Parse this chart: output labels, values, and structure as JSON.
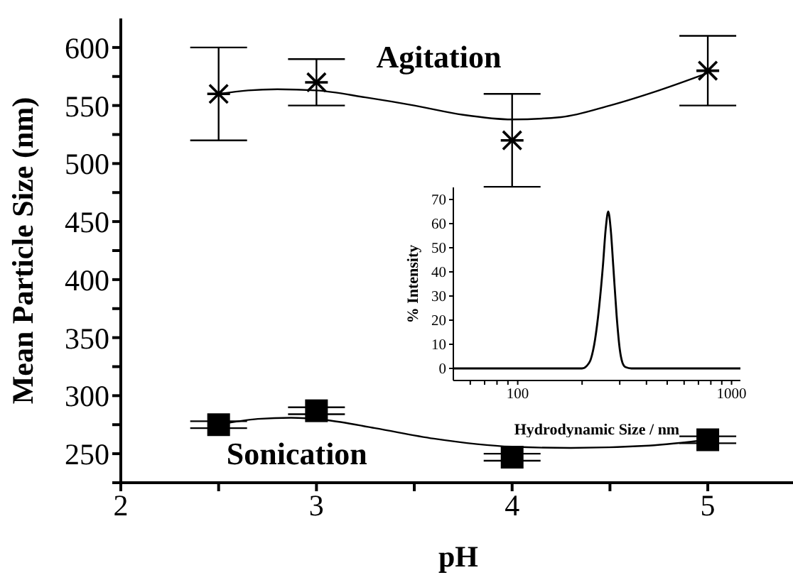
{
  "chart_data": [
    {
      "type": "scatter",
      "xlabel": "pH",
      "ylabel": "Mean Particle Size (nm)",
      "xlim": [
        2,
        5.45
      ],
      "ylim": [
        225,
        625
      ],
      "xticks": [
        2,
        {
          "value": 2.5,
          "label": null
        },
        3,
        {
          "value": 3.5,
          "label": null
        },
        4,
        {
          "value": 4.5,
          "label": null
        },
        5
      ],
      "yticks": [
        {
          "value": 225,
          "label": null
        },
        250,
        {
          "value": 275,
          "label": null
        },
        300,
        {
          "value": 325,
          "label": null
        },
        350,
        {
          "value": 375,
          "label": null
        },
        400,
        {
          "value": 425,
          "label": null
        },
        450,
        {
          "value": 475,
          "label": null
        },
        500,
        {
          "value": 525,
          "label": null
        },
        550,
        {
          "value": 575,
          "label": null
        },
        600
      ],
      "grid": false,
      "legend": false,
      "series": [
        {
          "type": "scatter",
          "name": "Agitation",
          "marker": "cross",
          "color": "#000000",
          "x": [
            2.5,
            3,
            4,
            5
          ],
          "values": [
            560,
            570,
            520,
            580
          ],
          "errors": [
            [
              520,
              600
            ],
            [
              550,
              590
            ],
            [
              480,
              560
            ],
            [
              550,
              610
            ]
          ]
        },
        {
          "type": "scatter",
          "name": "Sonication",
          "marker": "square",
          "color": "#000000",
          "x": [
            2.5,
            3,
            4,
            5
          ],
          "values": [
            275,
            287,
            247,
            262
          ],
          "errors": [
            3,
            3,
            3,
            3
          ]
        },
        {
          "type": "line",
          "marker": "none",
          "color": "#000000",
          "x": [
            2.5,
            2.65,
            2.8,
            3,
            3.25,
            3.5,
            3.75,
            4,
            4.25,
            4.5,
            4.75,
            5
          ],
          "values": [
            560,
            563,
            564,
            563,
            557,
            550,
            542,
            538,
            540,
            550,
            563,
            578
          ]
        },
        {
          "type": "line",
          "marker": "none",
          "color": "#000000",
          "x": [
            2.5,
            2.7,
            2.87,
            3.05,
            3.3,
            3.6,
            4,
            4.3,
            4.7,
            5
          ],
          "values": [
            275,
            280,
            281,
            279,
            272,
            263,
            256,
            255,
            257,
            262
          ]
        }
      ]
    },
    {
      "type": "line",
      "xlabel": "Hydrodynamic Size / nm",
      "ylabel": "% Intensity",
      "log": "x",
      "xlim": [
        50,
        1100
      ],
      "ylim": [
        -5,
        75
      ],
      "xticks": [
        {
          "value": 60,
          "label": null
        },
        {
          "value": 70,
          "label": null
        },
        {
          "value": 80,
          "label": null
        },
        {
          "value": 90,
          "label": null
        },
        100,
        {
          "value": 200,
          "label": null
        },
        {
          "value": 300,
          "label": null
        },
        {
          "value": 400,
          "label": null
        },
        {
          "value": 500,
          "label": null
        },
        {
          "value": 600,
          "label": null
        },
        {
          "value": 700,
          "label": null
        },
        {
          "value": 800,
          "label": null
        },
        {
          "value": 900,
          "label": null
        },
        1000
      ],
      "yticks": [
        0,
        10,
        20,
        30,
        40,
        50,
        60,
        70
      ],
      "grid": false,
      "legend": false,
      "marker": "none",
      "series": [
        {
          "color": "#000000",
          "x": [
            50,
            150,
            200,
            210,
            220,
            230,
            240,
            250,
            258,
            265,
            272,
            280,
            290,
            300,
            310,
            320,
            340,
            500,
            1100
          ],
          "values": [
            0,
            0,
            0,
            1,
            4,
            12,
            25,
            42,
            58,
            65,
            58,
            42,
            22,
            8,
            2,
            0.5,
            0,
            0,
            0
          ]
        }
      ]
    }
  ]
}
